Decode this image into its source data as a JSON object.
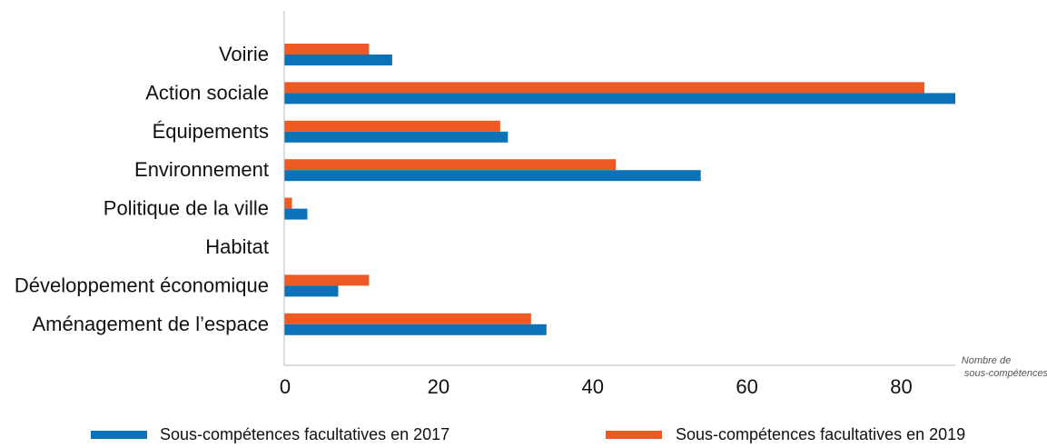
{
  "chart_data": {
    "type": "bar",
    "orientation": "horizontal",
    "categories": [
      "Voirie",
      "Action sociale",
      "Équipements",
      "Environnement",
      "Politique de la ville",
      "Habitat",
      "Développement économique",
      "Aménagement de l’espace"
    ],
    "series": [
      {
        "name": "Sous-compétences facultatives en 2017",
        "color": "#0a72b9",
        "values": [
          14,
          87,
          29,
          54,
          3,
          0,
          7,
          34
        ]
      },
      {
        "name": "Sous-compétences facultatives en 2019",
        "color": "#ef5a24",
        "values": [
          11,
          83,
          28,
          43,
          1,
          0,
          11,
          32
        ]
      }
    ],
    "xlabel_lines": [
      "Nombre de",
      "sous-compétences"
    ],
    "xlim": [
      0,
      87
    ],
    "xticks": [
      0,
      20,
      40,
      60,
      80
    ],
    "grid": false,
    "legend_position": "bottom"
  }
}
